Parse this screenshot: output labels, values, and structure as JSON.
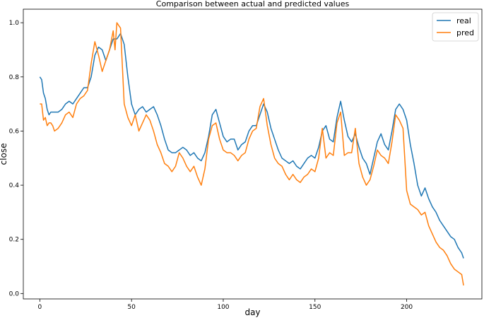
{
  "chart_data": {
    "type": "line",
    "title": "Comparison between actual and predicted values",
    "xlabel": "day",
    "ylabel": "close",
    "xlim": [
      -9,
      241
    ],
    "ylim": [
      -0.02,
      1.05
    ],
    "xticks": [
      0,
      50,
      100,
      150,
      200
    ],
    "yticks": [
      0.0,
      0.2,
      0.4,
      0.6,
      0.8,
      1.0
    ],
    "xtick_labels": [
      "0",
      "50",
      "100",
      "150",
      "200"
    ],
    "ytick_labels": [
      "0.0",
      "0.2",
      "0.4",
      "0.6",
      "0.8",
      "1.0"
    ],
    "grid": false,
    "legend_position": "top-right",
    "series": [
      {
        "name": "real",
        "color": "#1f77b4",
        "points": [
          [
            0,
            0.8
          ],
          [
            1,
            0.79
          ],
          [
            2,
            0.74
          ],
          [
            3,
            0.72
          ],
          [
            4,
            0.68
          ],
          [
            5,
            0.66
          ],
          [
            6,
            0.67
          ],
          [
            8,
            0.67
          ],
          [
            10,
            0.67
          ],
          [
            12,
            0.68
          ],
          [
            14,
            0.7
          ],
          [
            16,
            0.71
          ],
          [
            18,
            0.7
          ],
          [
            20,
            0.72
          ],
          [
            22,
            0.74
          ],
          [
            24,
            0.76
          ],
          [
            26,
            0.76
          ],
          [
            28,
            0.8
          ],
          [
            30,
            0.88
          ],
          [
            32,
            0.91
          ],
          [
            34,
            0.9
          ],
          [
            36,
            0.86
          ],
          [
            38,
            0.9
          ],
          [
            40,
            0.94
          ],
          [
            42,
            0.94
          ],
          [
            44,
            0.96
          ],
          [
            46,
            0.92
          ],
          [
            48,
            0.8
          ],
          [
            50,
            0.7
          ],
          [
            52,
            0.66
          ],
          [
            54,
            0.68
          ],
          [
            56,
            0.69
          ],
          [
            58,
            0.67
          ],
          [
            60,
            0.68
          ],
          [
            62,
            0.69
          ],
          [
            64,
            0.66
          ],
          [
            66,
            0.62
          ],
          [
            68,
            0.57
          ],
          [
            70,
            0.53
          ],
          [
            72,
            0.52
          ],
          [
            74,
            0.52
          ],
          [
            76,
            0.53
          ],
          [
            78,
            0.54
          ],
          [
            80,
            0.53
          ],
          [
            82,
            0.51
          ],
          [
            84,
            0.52
          ],
          [
            86,
            0.5
          ],
          [
            88,
            0.49
          ],
          [
            90,
            0.52
          ],
          [
            92,
            0.58
          ],
          [
            94,
            0.66
          ],
          [
            96,
            0.68
          ],
          [
            98,
            0.63
          ],
          [
            100,
            0.58
          ],
          [
            102,
            0.56
          ],
          [
            104,
            0.57
          ],
          [
            106,
            0.57
          ],
          [
            108,
            0.53
          ],
          [
            110,
            0.55
          ],
          [
            112,
            0.56
          ],
          [
            114,
            0.6
          ],
          [
            116,
            0.62
          ],
          [
            118,
            0.62
          ],
          [
            120,
            0.66
          ],
          [
            122,
            0.7
          ],
          [
            124,
            0.67
          ],
          [
            126,
            0.61
          ],
          [
            128,
            0.57
          ],
          [
            130,
            0.53
          ],
          [
            132,
            0.5
          ],
          [
            134,
            0.49
          ],
          [
            136,
            0.48
          ],
          [
            138,
            0.49
          ],
          [
            140,
            0.47
          ],
          [
            142,
            0.46
          ],
          [
            144,
            0.48
          ],
          [
            146,
            0.5
          ],
          [
            148,
            0.51
          ],
          [
            150,
            0.5
          ],
          [
            152,
            0.54
          ],
          [
            154,
            0.6
          ],
          [
            156,
            0.62
          ],
          [
            158,
            0.57
          ],
          [
            160,
            0.56
          ],
          [
            162,
            0.65
          ],
          [
            164,
            0.71
          ],
          [
            166,
            0.64
          ],
          [
            168,
            0.58
          ],
          [
            170,
            0.56
          ],
          [
            172,
            0.59
          ],
          [
            174,
            0.54
          ],
          [
            176,
            0.5
          ],
          [
            178,
            0.48
          ],
          [
            180,
            0.44
          ],
          [
            182,
            0.5
          ],
          [
            184,
            0.56
          ],
          [
            186,
            0.59
          ],
          [
            188,
            0.55
          ],
          [
            190,
            0.53
          ],
          [
            192,
            0.6
          ],
          [
            194,
            0.68
          ],
          [
            196,
            0.7
          ],
          [
            198,
            0.68
          ],
          [
            200,
            0.64
          ],
          [
            202,
            0.55
          ],
          [
            204,
            0.48
          ],
          [
            206,
            0.4
          ],
          [
            208,
            0.36
          ],
          [
            210,
            0.39
          ],
          [
            212,
            0.35
          ],
          [
            214,
            0.32
          ],
          [
            216,
            0.3
          ],
          [
            218,
            0.27
          ],
          [
            220,
            0.25
          ],
          [
            222,
            0.23
          ],
          [
            224,
            0.21
          ],
          [
            226,
            0.2
          ],
          [
            228,
            0.17
          ],
          [
            230,
            0.15
          ],
          [
            231,
            0.13
          ]
        ]
      },
      {
        "name": "pred",
        "color": "#ff7f0e",
        "points": [
          [
            0,
            0.7
          ],
          [
            1,
            0.7
          ],
          [
            2,
            0.64
          ],
          [
            3,
            0.65
          ],
          [
            4,
            0.62
          ],
          [
            5,
            0.63
          ],
          [
            6,
            0.63
          ],
          [
            7,
            0.62
          ],
          [
            8,
            0.6
          ],
          [
            10,
            0.61
          ],
          [
            12,
            0.63
          ],
          [
            14,
            0.66
          ],
          [
            16,
            0.67
          ],
          [
            18,
            0.65
          ],
          [
            20,
            0.7
          ],
          [
            22,
            0.72
          ],
          [
            24,
            0.73
          ],
          [
            26,
            0.75
          ],
          [
            28,
            0.85
          ],
          [
            30,
            0.93
          ],
          [
            32,
            0.88
          ],
          [
            34,
            0.82
          ],
          [
            36,
            0.86
          ],
          [
            38,
            0.9
          ],
          [
            40,
            0.97
          ],
          [
            41,
            0.9
          ],
          [
            42,
            1.0
          ],
          [
            44,
            0.98
          ],
          [
            46,
            0.7
          ],
          [
            48,
            0.65
          ],
          [
            50,
            0.62
          ],
          [
            52,
            0.66
          ],
          [
            54,
            0.6
          ],
          [
            56,
            0.63
          ],
          [
            58,
            0.66
          ],
          [
            60,
            0.64
          ],
          [
            62,
            0.6
          ],
          [
            64,
            0.55
          ],
          [
            66,
            0.52
          ],
          [
            68,
            0.48
          ],
          [
            70,
            0.47
          ],
          [
            72,
            0.45
          ],
          [
            74,
            0.47
          ],
          [
            76,
            0.52
          ],
          [
            78,
            0.5
          ],
          [
            80,
            0.47
          ],
          [
            82,
            0.45
          ],
          [
            84,
            0.47
          ],
          [
            86,
            0.43
          ],
          [
            88,
            0.4
          ],
          [
            90,
            0.46
          ],
          [
            92,
            0.57
          ],
          [
            94,
            0.62
          ],
          [
            96,
            0.63
          ],
          [
            98,
            0.57
          ],
          [
            100,
            0.53
          ],
          [
            102,
            0.52
          ],
          [
            104,
            0.52
          ],
          [
            106,
            0.51
          ],
          [
            108,
            0.49
          ],
          [
            110,
            0.51
          ],
          [
            112,
            0.52
          ],
          [
            114,
            0.57
          ],
          [
            116,
            0.6
          ],
          [
            118,
            0.61
          ],
          [
            120,
            0.69
          ],
          [
            122,
            0.72
          ],
          [
            124,
            0.62
          ],
          [
            126,
            0.55
          ],
          [
            128,
            0.5
          ],
          [
            130,
            0.48
          ],
          [
            132,
            0.47
          ],
          [
            134,
            0.44
          ],
          [
            136,
            0.42
          ],
          [
            138,
            0.44
          ],
          [
            140,
            0.42
          ],
          [
            142,
            0.41
          ],
          [
            144,
            0.43
          ],
          [
            146,
            0.44
          ],
          [
            148,
            0.46
          ],
          [
            150,
            0.45
          ],
          [
            152,
            0.5
          ],
          [
            154,
            0.61
          ],
          [
            156,
            0.5
          ],
          [
            158,
            0.52
          ],
          [
            160,
            0.51
          ],
          [
            162,
            0.63
          ],
          [
            164,
            0.67
          ],
          [
            166,
            0.51
          ],
          [
            168,
            0.52
          ],
          [
            170,
            0.52
          ],
          [
            172,
            0.61
          ],
          [
            174,
            0.48
          ],
          [
            176,
            0.43
          ],
          [
            178,
            0.4
          ],
          [
            180,
            0.42
          ],
          [
            182,
            0.47
          ],
          [
            184,
            0.53
          ],
          [
            186,
            0.51
          ],
          [
            188,
            0.5
          ],
          [
            190,
            0.48
          ],
          [
            192,
            0.56
          ],
          [
            194,
            0.66
          ],
          [
            196,
            0.64
          ],
          [
            198,
            0.61
          ],
          [
            200,
            0.38
          ],
          [
            202,
            0.33
          ],
          [
            204,
            0.32
          ],
          [
            206,
            0.31
          ],
          [
            208,
            0.29
          ],
          [
            210,
            0.3
          ],
          [
            212,
            0.25
          ],
          [
            214,
            0.22
          ],
          [
            216,
            0.19
          ],
          [
            218,
            0.17
          ],
          [
            220,
            0.16
          ],
          [
            222,
            0.14
          ],
          [
            224,
            0.11
          ],
          [
            226,
            0.09
          ],
          [
            228,
            0.08
          ],
          [
            230,
            0.07
          ],
          [
            231,
            0.03
          ]
        ]
      }
    ]
  }
}
